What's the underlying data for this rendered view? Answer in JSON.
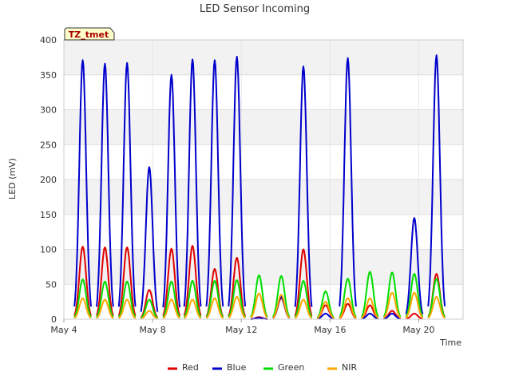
{
  "chart_data": {
    "type": "line",
    "title": "LED Sensor Incoming",
    "xlabel": "Time",
    "ylabel": "LED (mV)",
    "badge": "TZ_tmet",
    "ylim": [
      0,
      400
    ],
    "yticks": [
      0,
      50,
      100,
      150,
      200,
      250,
      300,
      350,
      400
    ],
    "xlim": [
      0,
      18
    ],
    "xticks": [
      {
        "label": "May 4",
        "day": 0
      },
      {
        "label": "May 8",
        "day": 4
      },
      {
        "label": "May 12",
        "day": 8
      },
      {
        "label": "May 16",
        "day": 12
      },
      {
        "label": "May 20",
        "day": 16
      }
    ],
    "grid": true,
    "legend_position": "bottom",
    "x_unit": "days since May 4",
    "series": [
      {
        "name": "Red",
        "color": "#e00000",
        "peaks": [
          [
            0.85,
            104
          ],
          [
            1.85,
            103
          ],
          [
            2.85,
            103
          ],
          [
            3.85,
            42
          ],
          [
            4.85,
            101
          ],
          [
            5.8,
            105
          ],
          [
            6.8,
            72
          ],
          [
            7.8,
            88
          ],
          [
            8.8,
            3
          ],
          [
            9.8,
            30
          ],
          [
            10.8,
            100
          ],
          [
            11.8,
            20
          ],
          [
            12.8,
            22
          ],
          [
            13.8,
            20
          ],
          [
            14.8,
            12
          ],
          [
            15.8,
            8
          ],
          [
            16.8,
            65
          ]
        ]
      },
      {
        "name": "Blue",
        "color": "#0000cc",
        "peaks": [
          [
            0.85,
            371
          ],
          [
            1.85,
            366
          ],
          [
            2.85,
            367
          ],
          [
            3.85,
            218
          ],
          [
            4.85,
            350
          ],
          [
            5.8,
            372
          ],
          [
            6.8,
            371
          ],
          [
            7.8,
            376
          ],
          [
            8.8,
            2
          ],
          [
            9.8,
            32
          ],
          [
            10.8,
            362
          ],
          [
            11.8,
            8
          ],
          [
            12.8,
            374
          ],
          [
            13.8,
            8
          ],
          [
            14.8,
            8
          ],
          [
            15.8,
            145
          ],
          [
            16.8,
            378
          ]
        ]
      },
      {
        "name": "Green",
        "color": "#00dd00",
        "peaks": [
          [
            0.85,
            57
          ],
          [
            1.85,
            54
          ],
          [
            2.85,
            54
          ],
          [
            3.85,
            28
          ],
          [
            4.85,
            54
          ],
          [
            5.8,
            55
          ],
          [
            6.8,
            55
          ],
          [
            7.8,
            56
          ],
          [
            8.8,
            63
          ],
          [
            9.8,
            62
          ],
          [
            10.8,
            55
          ],
          [
            11.8,
            40
          ],
          [
            12.8,
            58
          ],
          [
            13.8,
            68
          ],
          [
            14.8,
            67
          ],
          [
            15.8,
            65
          ],
          [
            16.8,
            58
          ]
        ]
      },
      {
        "name": "NIR",
        "color": "#ffa500",
        "peaks": [
          [
            0.85,
            30
          ],
          [
            1.85,
            28
          ],
          [
            2.85,
            28
          ],
          [
            3.85,
            12
          ],
          [
            4.85,
            28
          ],
          [
            5.8,
            28
          ],
          [
            6.8,
            30
          ],
          [
            7.8,
            32
          ],
          [
            8.8,
            37
          ],
          [
            9.8,
            35
          ],
          [
            10.8,
            28
          ],
          [
            11.8,
            25
          ],
          [
            12.8,
            30
          ],
          [
            13.8,
            30
          ],
          [
            14.8,
            38
          ],
          [
            15.8,
            38
          ],
          [
            16.8,
            32
          ]
        ]
      }
    ]
  }
}
